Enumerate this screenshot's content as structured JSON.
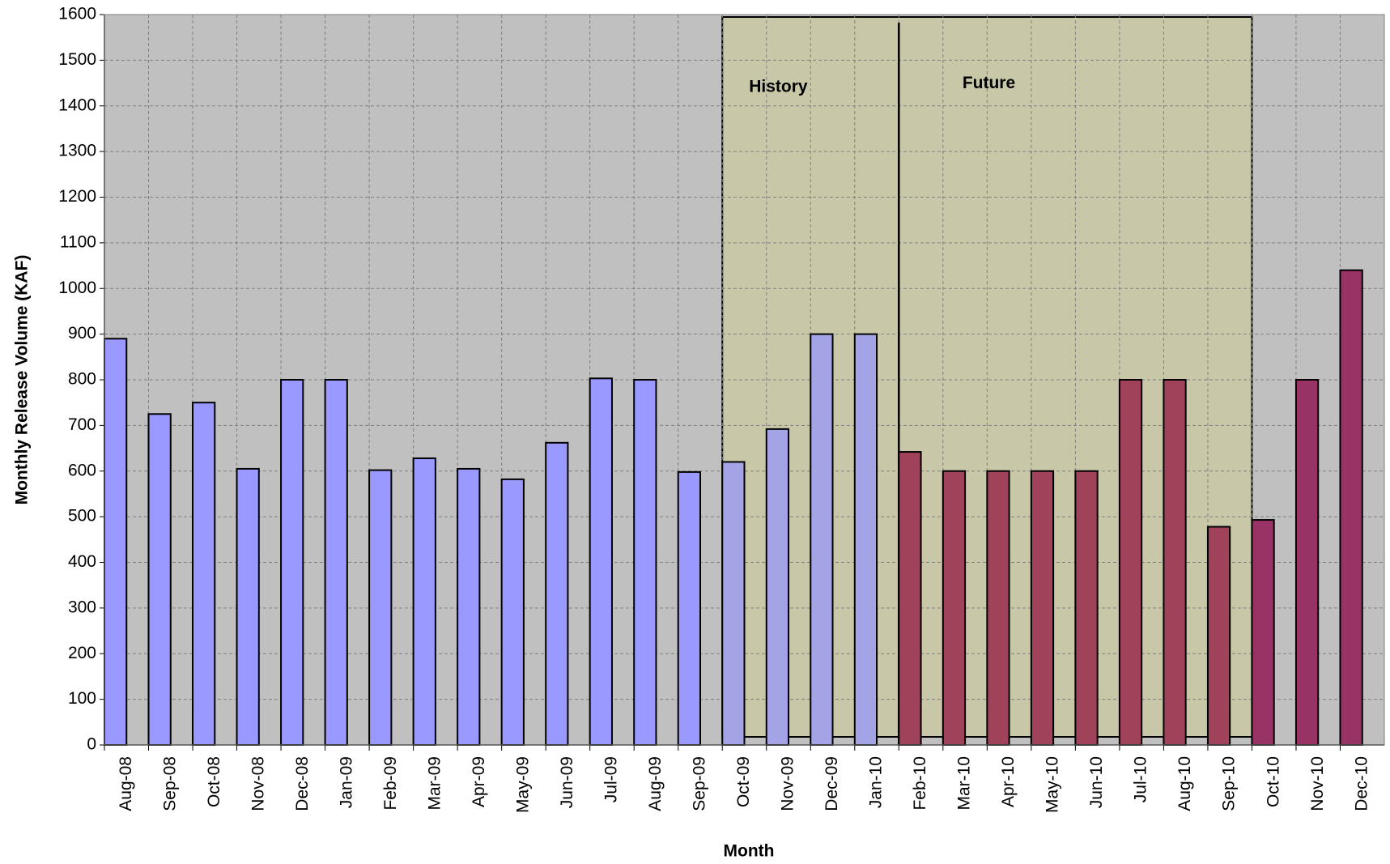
{
  "chart_data": {
    "type": "bar",
    "x_label": "Month",
    "y_label": "Monthly Release Volume (KAF)",
    "categories": [
      "Aug-08",
      "Sep-08",
      "Oct-08",
      "Nov-08",
      "Dec-08",
      "Jan-09",
      "Feb-09",
      "Mar-09",
      "Apr-09",
      "May-09",
      "Jun-09",
      "Jul-09",
      "Aug-09",
      "Sep-09",
      "Oct-09",
      "Nov-09",
      "Dec-09",
      "Jan-10",
      "Feb-10",
      "Mar-10",
      "Apr-10",
      "May-10",
      "Jun-10",
      "Jul-10",
      "Aug-10",
      "Sep-10",
      "Oct-10",
      "Nov-10",
      "Dec-10"
    ],
    "values": [
      890,
      725,
      750,
      605,
      800,
      800,
      602,
      628,
      605,
      582,
      662,
      803,
      800,
      598,
      620,
      692,
      900,
      900,
      642,
      600,
      600,
      600,
      600,
      800,
      800,
      478,
      493,
      800,
      1040
    ],
    "colors": [
      "#9999ff",
      "#9999ff",
      "#9999ff",
      "#9999ff",
      "#9999ff",
      "#9999ff",
      "#9999ff",
      "#9999ff",
      "#9999ff",
      "#9999ff",
      "#9999ff",
      "#9999ff",
      "#9999ff",
      "#9999ff",
      "#a3a3e6",
      "#a3a3e6",
      "#a3a3e6",
      "#a3a3e6",
      "#a0435a",
      "#a0435a",
      "#a0435a",
      "#a0435a",
      "#a0435a",
      "#a0435a",
      "#a0435a",
      "#a0435a",
      "#993366",
      "#993366",
      "#993366"
    ],
    "annotations": [
      "History",
      "Future"
    ],
    "ylim": [
      0,
      1600
    ],
    "yticks": [
      0,
      100,
      200,
      300,
      400,
      500,
      600,
      700,
      800,
      900,
      1000,
      1100,
      1200,
      1300,
      1400,
      1500,
      1600
    ],
    "grid": true
  }
}
